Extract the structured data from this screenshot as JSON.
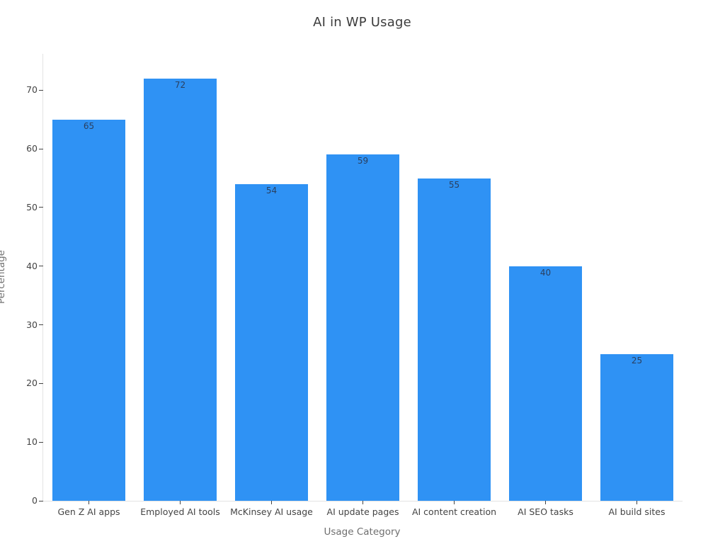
{
  "title": "AI in WP Usage",
  "chart_data": {
    "type": "bar",
    "title": "AI in WP Usage",
    "xlabel": "Usage Category",
    "ylabel": "Percentage",
    "categories": [
      "Gen Z AI apps",
      "Employed AI tools",
      "McKinsey AI usage",
      "AI update pages",
      "AI content creation",
      "AI SEO tasks",
      "AI build sites"
    ],
    "values": [
      65,
      72,
      54,
      59,
      55,
      40,
      25
    ],
    "value_labels": [
      "65",
      "72",
      "54",
      "59",
      "55",
      "40",
      "25"
    ],
    "ylim": [
      0,
      76.2
    ],
    "yticks": [
      0,
      10,
      20,
      30,
      40,
      50,
      60,
      70
    ],
    "grid": false,
    "legend": "none",
    "value_label_position": "inside-top",
    "bar_width_frac": 0.8,
    "colors": {
      "bar": "#2F92F4",
      "value_label": "#2a3f5f",
      "axis_line": "#e3e3e3",
      "tick_mark": "#444444",
      "tick_label": "#444444",
      "axis_title": "#6f6f6f",
      "title": "#3c3c3c",
      "background": "#ffffff"
    }
  }
}
